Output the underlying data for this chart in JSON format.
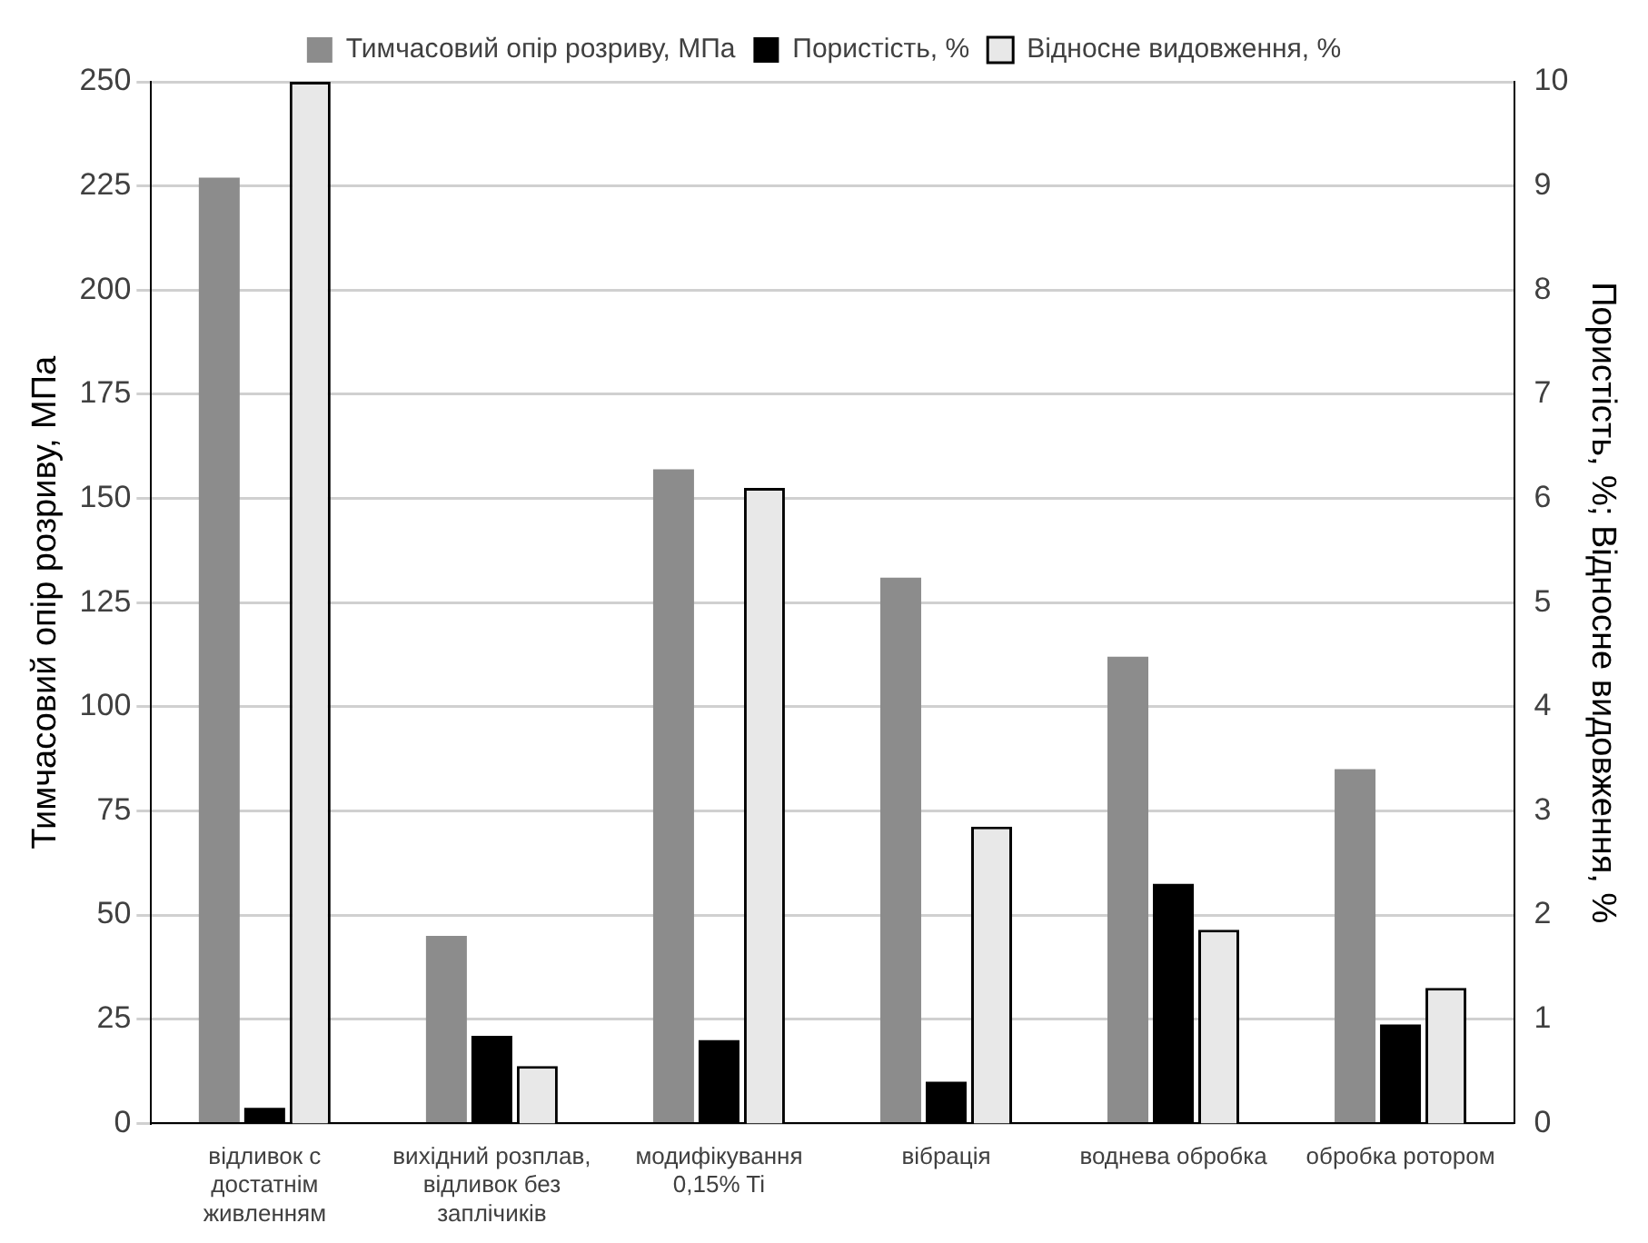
{
  "chart_data": {
    "type": "bar",
    "categories": [
      "відливок с достатнім живленням",
      "вихідний розплав, відливок без заплічиків",
      "модифікування 0,15% Ti",
      "вібрація",
      "воднева обробка",
      "обробка ротором"
    ],
    "series": [
      {
        "name": "Тимчасовий опір розриву, МПа",
        "color": "#8c8c8c",
        "values": [
          227,
          45,
          157,
          131,
          112,
          85
        ]
      },
      {
        "name": "Пористість, %",
        "color": "#000000",
        "axis": "y2",
        "values": [
          0.15,
          0.84,
          0.8,
          0.4,
          2.3,
          0.95
        ]
      },
      {
        "name": "Відносне видовження, %",
        "color": "#e8e8e8",
        "axis": "y2",
        "values": [
          10,
          0.55,
          6.1,
          2.85,
          1.86,
          1.3
        ]
      }
    ],
    "ylabel": "Тимчасовий опір розриву, МПа",
    "y2label": "Пористість, %; Відносне видовження, %",
    "ylim": [
      0,
      250
    ],
    "yticks": [
      0,
      25,
      50,
      75,
      100,
      125,
      150,
      175,
      200,
      225,
      250
    ],
    "y2lim": [
      0,
      10
    ],
    "y2ticks": [
      0,
      1,
      2,
      3,
      4,
      5,
      6,
      7,
      8,
      9,
      10
    ],
    "grid": "y",
    "legend": "top"
  }
}
